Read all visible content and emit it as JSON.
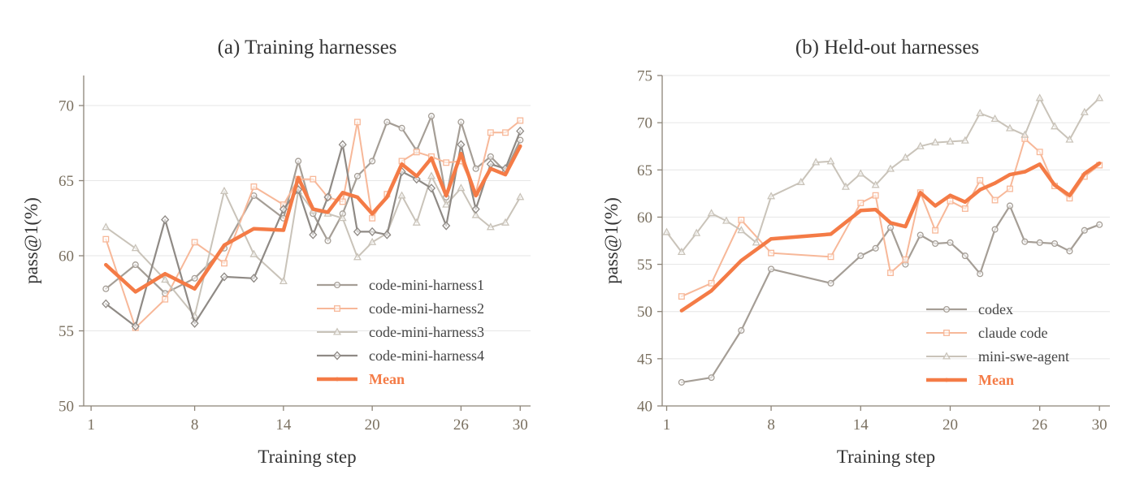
{
  "colors": {
    "gray_dark": "#8f8a85",
    "gray_mid": "#a59e96",
    "gray_light": "#c9c3b9",
    "peach": "#f7b899",
    "mean": "#f47b46",
    "axis": "#8c8478",
    "grid": "#e6e6e6"
  },
  "chart_data": [
    {
      "type": "line",
      "title": "(a) Training harnesses",
      "xlabel": "Training step",
      "ylabel": "pass@1(%)",
      "xlim": [
        0.5,
        30.7
      ],
      "ylim": [
        50,
        72
      ],
      "xticks": [
        1,
        8,
        14,
        20,
        26,
        30
      ],
      "yticks": [
        50,
        55,
        60,
        65,
        70
      ],
      "grid": true,
      "legend_position": "lower-right",
      "series": [
        {
          "name": "code-mini-harness1",
          "marker": "circle",
          "color": "#a59e96",
          "width": 2.2,
          "x": [
            2,
            4,
            6,
            8,
            10,
            12,
            14,
            15,
            16,
            17,
            18,
            19,
            20,
            21,
            22,
            23,
            24,
            25,
            26,
            27,
            28,
            29,
            30
          ],
          "y": [
            57.8,
            59.4,
            57.5,
            58.5,
            60.5,
            64.0,
            62.5,
            66.3,
            62.8,
            61.0,
            62.8,
            65.3,
            66.3,
            68.9,
            68.5,
            67.0,
            69.3,
            63.9,
            68.9,
            65.8,
            66.6,
            65.6,
            67.7
          ]
        },
        {
          "name": "code-mini-harness2",
          "marker": "square",
          "color": "#f7b899",
          "width": 2.0,
          "x": [
            2,
            4,
            6,
            8,
            10,
            12,
            14,
            15,
            16,
            17,
            18,
            19,
            20,
            21,
            22,
            23,
            24,
            25,
            26,
            27,
            28,
            29,
            30
          ],
          "y": [
            61.1,
            55.2,
            57.1,
            60.9,
            59.5,
            64.6,
            63.4,
            65.1,
            65.1,
            63.9,
            63.6,
            68.9,
            62.5,
            64.1,
            66.3,
            66.9,
            66.6,
            66.2,
            66.3,
            64.2,
            68.2,
            68.2,
            69.0
          ]
        },
        {
          "name": "code-mini-harness3",
          "marker": "triangle",
          "color": "#c9c3b9",
          "width": 2.0,
          "x": [
            2,
            4,
            6,
            8,
            10,
            12,
            14,
            15,
            16,
            17,
            18,
            19,
            20,
            21,
            22,
            23,
            24,
            25,
            26,
            27,
            28,
            29,
            30
          ],
          "y": [
            61.9,
            60.5,
            58.4,
            56.0,
            64.3,
            60.1,
            58.3,
            64.3,
            63.0,
            62.8,
            62.5,
            59.9,
            60.9,
            61.5,
            64.0,
            62.2,
            65.3,
            63.4,
            64.5,
            62.7,
            61.9,
            62.2,
            63.9
          ]
        },
        {
          "name": "code-mini-harness4",
          "marker": "diamond",
          "color": "#8f8a85",
          "width": 2.2,
          "x": [
            2,
            4,
            6,
            8,
            10,
            12,
            14,
            15,
            16,
            17,
            18,
            19,
            20,
            21,
            22,
            23,
            24,
            25,
            26,
            27,
            28,
            29,
            30
          ],
          "y": [
            56.8,
            55.3,
            62.4,
            55.5,
            58.6,
            58.5,
            63.1,
            64.4,
            61.4,
            63.9,
            67.4,
            61.6,
            61.6,
            61.4,
            65.6,
            65.1,
            64.5,
            62.0,
            67.4,
            63.1,
            66.1,
            65.8,
            68.3
          ]
        },
        {
          "name": "Mean",
          "marker": "none",
          "color": "#f47b46",
          "width": 4.5,
          "x": [
            2,
            4,
            6,
            8,
            10,
            12,
            14,
            15,
            16,
            17,
            18,
            19,
            20,
            21,
            22,
            23,
            24,
            25,
            26,
            27,
            28,
            29,
            30
          ],
          "y": [
            59.4,
            57.6,
            58.8,
            57.8,
            60.7,
            61.8,
            61.7,
            65.2,
            63.1,
            62.9,
            64.2,
            63.9,
            62.8,
            63.9,
            66.1,
            65.3,
            66.5,
            64.0,
            66.8,
            64.0,
            65.8,
            65.4,
            67.3
          ]
        }
      ]
    },
    {
      "type": "line",
      "title": "(b) Held-out harnesses",
      "xlabel": "Training step",
      "ylabel": "pass@1(%)",
      "xlim": [
        0.7,
        30.7
      ],
      "ylim": [
        40,
        75
      ],
      "xticks": [
        1,
        8,
        14,
        20,
        26,
        30
      ],
      "yticks": [
        40,
        45,
        50,
        55,
        60,
        65,
        70,
        75
      ],
      "grid": true,
      "legend_position": "lower-right",
      "series": [
        {
          "name": "codex",
          "marker": "circle",
          "color": "#a59e96",
          "width": 2.2,
          "x": [
            2,
            4,
            6,
            8,
            12,
            14,
            15,
            16,
            17,
            18,
            19,
            20,
            21,
            22,
            23,
            24,
            25,
            26,
            27,
            28,
            29,
            30
          ],
          "y": [
            42.5,
            43.0,
            48.0,
            54.5,
            53.0,
            55.9,
            56.7,
            58.9,
            55.0,
            58.1,
            57.2,
            57.3,
            55.9,
            54.0,
            58.7,
            61.2,
            57.4,
            57.3,
            57.2,
            56.4,
            58.6,
            59.2
          ]
        },
        {
          "name": "claude code",
          "marker": "square",
          "color": "#f7b899",
          "width": 2.0,
          "x": [
            2,
            4,
            6,
            8,
            12,
            14,
            15,
            16,
            17,
            18,
            19,
            20,
            21,
            22,
            23,
            24,
            25,
            26,
            27,
            28,
            29,
            30
          ],
          "y": [
            51.6,
            53.0,
            59.7,
            56.2,
            55.8,
            61.5,
            62.3,
            54.1,
            55.5,
            62.6,
            58.6,
            61.7,
            60.9,
            63.9,
            61.8,
            63.0,
            68.3,
            66.9,
            63.3,
            62.0,
            64.3,
            65.5
          ]
        },
        {
          "name": "mini-swe-agent",
          "marker": "triangle",
          "color": "#c9c3b9",
          "width": 2.0,
          "x": [
            1,
            2,
            3,
            4,
            5,
            6,
            7,
            8,
            10,
            11,
            12,
            13,
            14,
            15,
            16,
            17,
            18,
            19,
            20,
            21,
            22,
            23,
            24,
            25,
            26,
            27,
            28,
            29,
            30
          ],
          "y": [
            58.4,
            56.3,
            58.3,
            60.4,
            59.6,
            58.6,
            57.3,
            62.2,
            63.7,
            65.8,
            65.9,
            63.2,
            64.6,
            63.4,
            65.1,
            66.3,
            67.5,
            67.9,
            68.0,
            68.1,
            71.0,
            70.4,
            69.4,
            68.7,
            72.6,
            69.6,
            68.2,
            71.1,
            72.6
          ]
        },
        {
          "name": "Mean",
          "marker": "none",
          "color": "#f47b46",
          "width": 4.5,
          "x": [
            2,
            4,
            6,
            8,
            12,
            14,
            15,
            16,
            17,
            18,
            19,
            20,
            21,
            22,
            23,
            24,
            25,
            26,
            27,
            28,
            29,
            30
          ],
          "y": [
            50.1,
            52.2,
            55.4,
            57.7,
            58.2,
            60.7,
            60.8,
            59.4,
            59.0,
            62.6,
            61.2,
            62.3,
            61.6,
            62.9,
            63.6,
            64.5,
            64.8,
            65.6,
            63.4,
            62.3,
            64.6,
            65.7
          ]
        }
      ]
    }
  ]
}
